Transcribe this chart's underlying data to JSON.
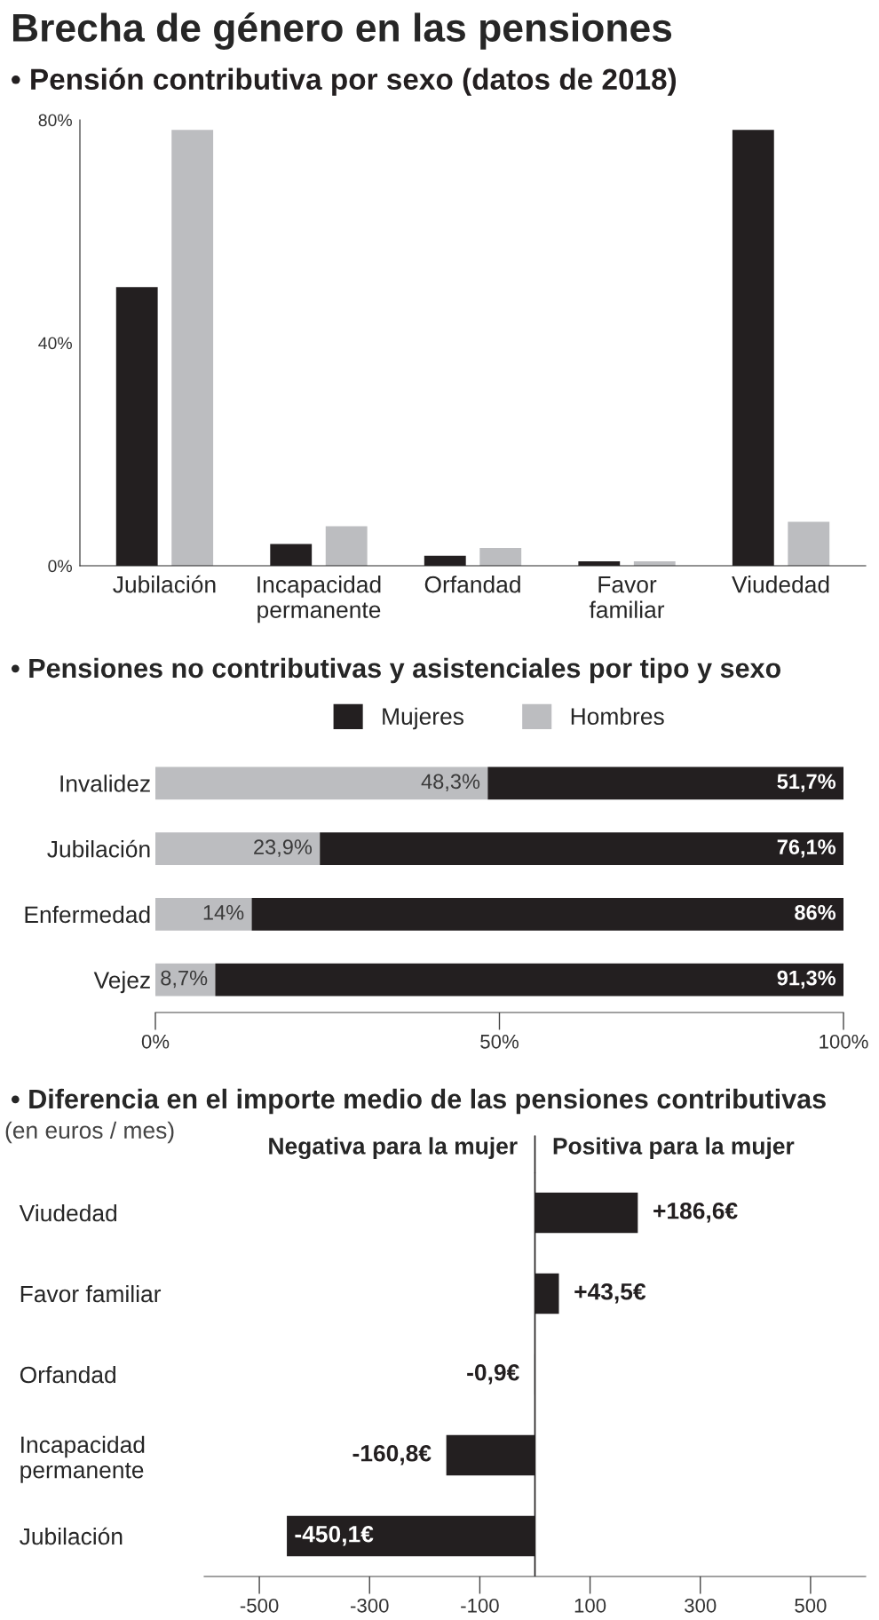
{
  "chart_data": [
    {
      "type": "bar",
      "title": "Brecha de género en las pensiones",
      "subtitle": "• Pensión contributiva por sexo (datos de 2018)",
      "categories": [
        "Jubilación",
        "Incapacidad permanente",
        "Orfandad",
        "Favor familiar",
        "Viudedad"
      ],
      "series": [
        {
          "color": "#231f20",
          "values": [
            50,
            3.9,
            1.8,
            0.8,
            78.2
          ]
        },
        {
          "color": "#bcbdc0",
          "values": [
            78.2,
            7.1,
            3.2,
            0.8,
            7.9
          ]
        }
      ],
      "ylim": [
        0,
        80
      ],
      "yticks": [
        {
          "value": 0,
          "label": "0%"
        },
        {
          "value": 40,
          "label": "40%"
        },
        {
          "value": 80,
          "label": "80%"
        }
      ]
    },
    {
      "type": "bar",
      "orientation": "horizontal",
      "stacked": true,
      "title": "• Pensiones no contributivas y asistenciales por tipo y sexo",
      "categories": [
        "Invalidez",
        "Jubilación",
        "Enfermedad",
        "Vejez"
      ],
      "series": [
        {
          "name": "Hombres",
          "color": "#bcbdc0",
          "values": [
            48.3,
            23.9,
            14,
            8.7
          ],
          "value_labels": [
            "48,3%",
            "23,9%",
            "14%",
            "8,7%"
          ]
        },
        {
          "name": "Mujeres",
          "color": "#231f20",
          "values": [
            51.7,
            76.1,
            86,
            91.3
          ],
          "value_labels": [
            "51,7%",
            "76,1%",
            "86%",
            "91,3%"
          ]
        }
      ],
      "xlim": [
        0,
        100
      ],
      "xticks": [
        {
          "value": 0,
          "label": "0%"
        },
        {
          "value": 50,
          "label": "50%"
        },
        {
          "value": 100,
          "label": "100%"
        }
      ],
      "legend": "top"
    },
    {
      "type": "bar",
      "orientation": "horizontal",
      "title": "• Diferencia en el importe medio de las pensiones contributivas",
      "subtitle": "(en euros / mes)",
      "categories": [
        "Viudedad",
        "Favor familiar",
        "Orfandad",
        "Incapacidad permanente",
        "Jubilación"
      ],
      "values": [
        186.6,
        43.5,
        -0.9,
        -160.8,
        -450.1
      ],
      "color": "#231f20",
      "value_labels": [
        "+186,6€",
        "+43,5€",
        "-0,9€",
        "-160,8€",
        "-450,1€"
      ],
      "xlim": [
        -600,
        600
      ],
      "xticks": [
        -500,
        -300,
        -100,
        100,
        300,
        500
      ],
      "ref_lines": [
        {
          "axis": "x",
          "value": 0,
          "color": "#231f20"
        }
      ],
      "annotations": [
        "Negativa para la mujer",
        "Positiva para la mujer"
      ]
    }
  ]
}
